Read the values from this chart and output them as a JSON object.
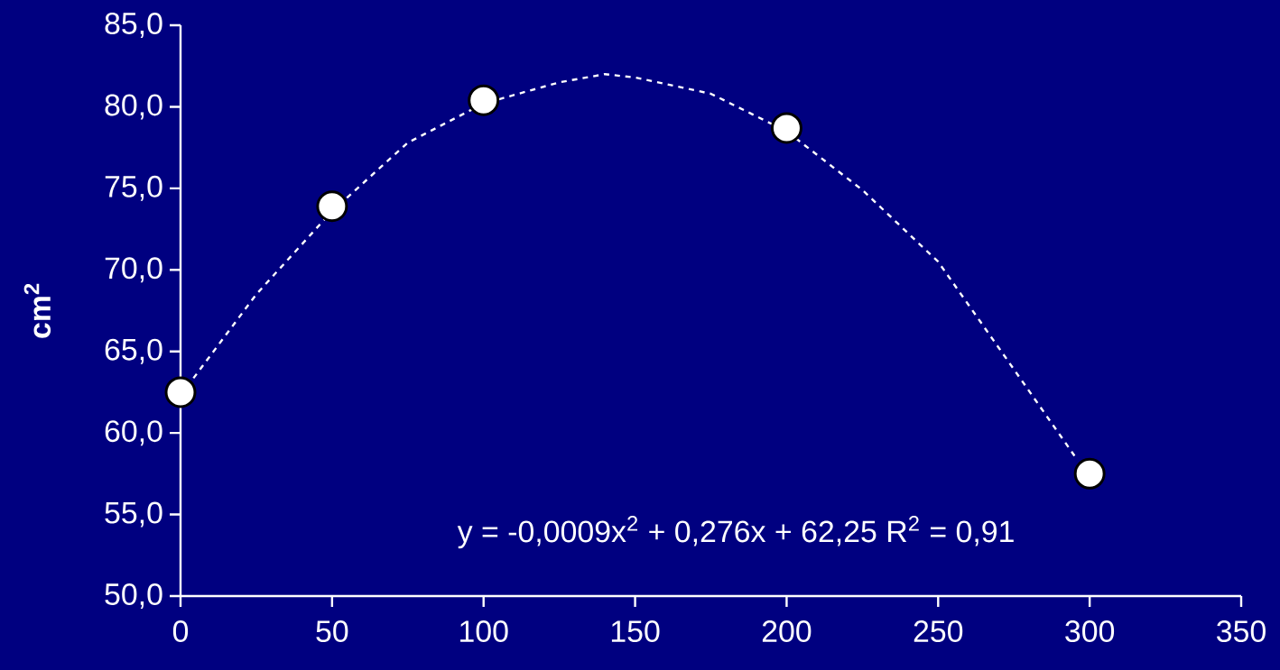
{
  "chart_data": {
    "type": "scatter",
    "ylabel": "cm$^{2}$",
    "xlim": [
      0,
      350
    ],
    "xticks": [
      0,
      50,
      100,
      150,
      200,
      250,
      300,
      350
    ],
    "ylim": [
      50,
      85
    ],
    "yticks": [
      {
        "value": 50,
        "label": "50,0"
      },
      {
        "value": 55,
        "label": "55,0"
      },
      {
        "value": 60,
        "label": "60,0"
      },
      {
        "value": 65,
        "label": "65,0"
      },
      {
        "value": 70,
        "label": "70,0"
      },
      {
        "value": 75,
        "label": "75,0"
      },
      {
        "value": 80,
        "label": "80,0"
      },
      {
        "value": 85,
        "label": "85,0"
      }
    ],
    "grid": false,
    "series": [
      {
        "type": "line",
        "color": "#ffffff",
        "line_style": "dashed",
        "marker": "none",
        "x": [
          0,
          25,
          50,
          75,
          100,
          125,
          140,
          150,
          175,
          200,
          225,
          250,
          275,
          295
        ],
        "values": [
          62.3,
          68.5,
          73.6,
          77.8,
          80.2,
          81.5,
          82.0,
          81.8,
          80.8,
          78.5,
          74.9,
          70.5,
          63.9,
          58.6
        ]
      },
      {
        "type": "scatter",
        "color": "#ffffff",
        "marker": "circle",
        "x": [
          0,
          50,
          100,
          200,
          300
        ],
        "values": [
          62.5,
          73.9,
          80.4,
          78.7,
          57.5
        ]
      }
    ],
    "annotations": [
      "y = -0,0009x$^{2}$ + 0,276x + 62,25  R$^{2}$ = 0,91"
    ]
  }
}
